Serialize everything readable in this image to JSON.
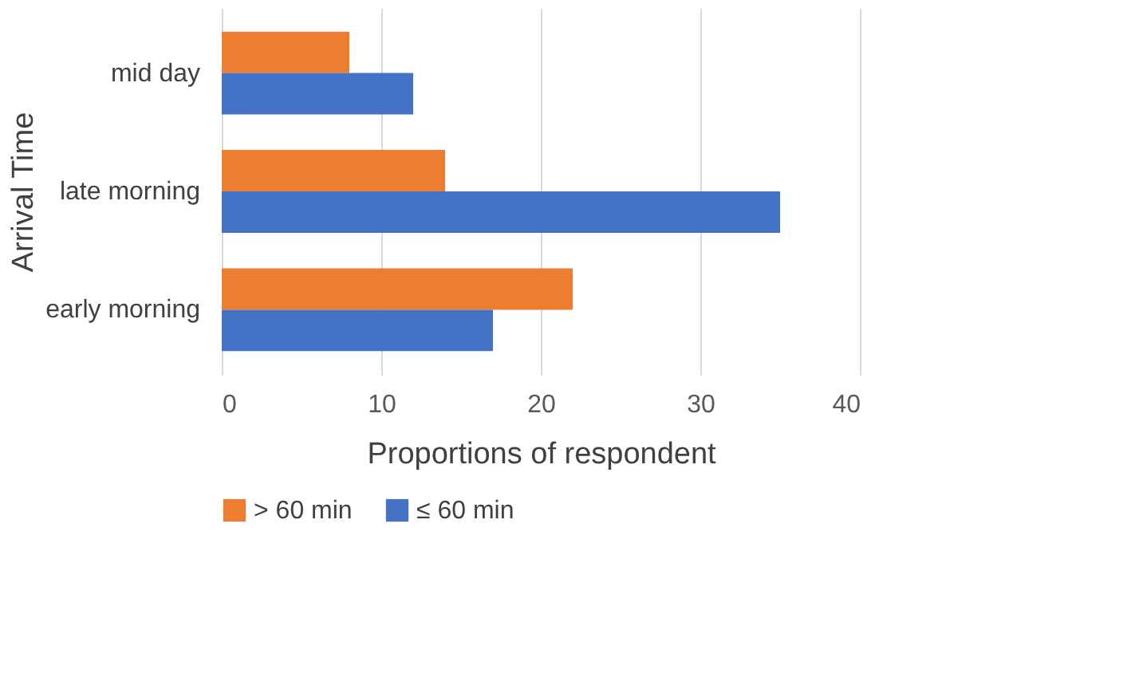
{
  "chart_data": {
    "type": "bar",
    "orientation": "horizontal",
    "xlabel": "Proportions of respondent",
    "ylabel": "Arrival Time",
    "categories": [
      "mid day",
      "late morning",
      "early morning"
    ],
    "series": [
      {
        "name": "> 60 min",
        "color": "#ed7d31",
        "values": [
          8,
          14,
          22
        ]
      },
      {
        "name": "≤ 60 min",
        "color": "#4472c4",
        "values": [
          12,
          35,
          17
        ]
      }
    ],
    "xlim": [
      0,
      40
    ],
    "xticks": [
      0,
      10,
      20,
      30,
      40
    ],
    "grid": "x",
    "legend": "bottom"
  }
}
